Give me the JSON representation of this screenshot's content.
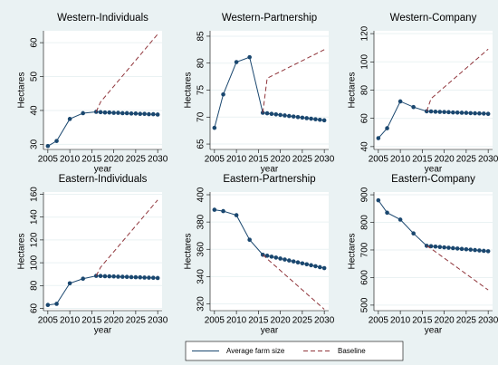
{
  "chart_data": [
    {
      "type": "line",
      "title": "Western-Individuals",
      "x_label": "year",
      "y_label": "Hectares",
      "xlim": [
        2004,
        2031
      ],
      "xticks": [
        2005,
        2010,
        2015,
        2020,
        2025,
        2030
      ],
      "ylim": [
        28.5,
        63.5
      ],
      "yticks": [
        30,
        40,
        50,
        60
      ],
      "grid": true,
      "series": [
        {
          "name": "Average farm size",
          "color": "#1a476f",
          "markers": true,
          "x": [
            2005,
            2007,
            2010,
            2013,
            2016,
            2017,
            2018,
            2019,
            2020,
            2021,
            2022,
            2023,
            2024,
            2025,
            2026,
            2027,
            2028,
            2029,
            2030
          ],
          "values": [
            29.5,
            31,
            37.5,
            39.2,
            39.6,
            39.5,
            39.4,
            39.4,
            39.3,
            39.3,
            39.2,
            39.2,
            39.1,
            39.1,
            39.0,
            39.0,
            38.9,
            38.9,
            38.8
          ]
        },
        {
          "name": "Baseline",
          "color": "#90353b",
          "dashed": true,
          "x": [
            2016,
            2017,
            2030
          ],
          "values": [
            39.6,
            42.5,
            62.5
          ]
        }
      ]
    },
    {
      "type": "line",
      "title": "Western-Partnership",
      "x_label": "year",
      "y_label": "Hectares",
      "xlim": [
        2004,
        2031
      ],
      "xticks": [
        2005,
        2010,
        2015,
        2020,
        2025,
        2030
      ],
      "ylim": [
        64,
        86
      ],
      "yticks": [
        65,
        70,
        75,
        80,
        85
      ],
      "grid": true,
      "series": [
        {
          "name": "Average farm size",
          "color": "#1a476f",
          "markers": true,
          "x": [
            2005,
            2007,
            2010,
            2013,
            2016,
            2017,
            2018,
            2019,
            2020,
            2021,
            2022,
            2023,
            2024,
            2025,
            2026,
            2027,
            2028,
            2029,
            2030
          ],
          "values": [
            68,
            74.2,
            80.2,
            81.1,
            70.8,
            70.7,
            70.6,
            70.5,
            70.4,
            70.3,
            70.2,
            70.1,
            70.0,
            69.9,
            69.8,
            69.7,
            69.6,
            69.5,
            69.4
          ]
        },
        {
          "name": "Baseline",
          "color": "#90353b",
          "dashed": true,
          "x": [
            2016,
            2017,
            2030
          ],
          "values": [
            70.8,
            77.2,
            82.5
          ]
        }
      ]
    },
    {
      "type": "line",
      "title": "Western-Company",
      "x_label": "year",
      "y_label": "Hectares",
      "xlim": [
        2004,
        2031
      ],
      "xticks": [
        2005,
        2010,
        2015,
        2020,
        2025,
        2030
      ],
      "ylim": [
        38,
        122
      ],
      "yticks": [
        40,
        60,
        80,
        100,
        120
      ],
      "grid": true,
      "series": [
        {
          "name": "Average farm size",
          "color": "#1a476f",
          "markers": true,
          "x": [
            2005,
            2007,
            2010,
            2013,
            2016,
            2017,
            2018,
            2019,
            2020,
            2021,
            2022,
            2023,
            2024,
            2025,
            2026,
            2027,
            2028,
            2029,
            2030
          ],
          "values": [
            46,
            53,
            72,
            68,
            65,
            64.9,
            64.7,
            64.6,
            64.5,
            64.4,
            64.2,
            64.1,
            64.0,
            63.9,
            63.7,
            63.6,
            63.5,
            63.4,
            63.2
          ]
        },
        {
          "name": "Baseline",
          "color": "#90353b",
          "dashed": true,
          "x": [
            2016,
            2017,
            2030
          ],
          "values": [
            65,
            74,
            109
          ]
        }
      ]
    },
    {
      "type": "line",
      "title": "Eastern-Individuals",
      "x_label": "year",
      "y_label": "Hectares",
      "xlim": [
        2004,
        2031
      ],
      "xticks": [
        2005,
        2010,
        2015,
        2020,
        2025,
        2030
      ],
      "ylim": [
        58,
        162
      ],
      "yticks": [
        60,
        80,
        100,
        120,
        140,
        160
      ],
      "grid": true,
      "series": [
        {
          "name": "Average farm size",
          "color": "#1a476f",
          "markers": true,
          "x": [
            2005,
            2007,
            2010,
            2013,
            2016,
            2017,
            2018,
            2019,
            2020,
            2021,
            2022,
            2023,
            2024,
            2025,
            2026,
            2027,
            2028,
            2029,
            2030
          ],
          "values": [
            63,
            64,
            82,
            86,
            88.5,
            88.4,
            88.2,
            88.1,
            88.0,
            87.8,
            87.7,
            87.6,
            87.4,
            87.3,
            87.2,
            87.0,
            86.9,
            86.8,
            86.6
          ]
        },
        {
          "name": "Baseline",
          "color": "#90353b",
          "dashed": true,
          "x": [
            2016,
            2017,
            2030
          ],
          "values": [
            88.5,
            96,
            155
          ]
        }
      ]
    },
    {
      "type": "line",
      "title": "Eastern-Partnership",
      "x_label": "year",
      "y_label": "Hectares",
      "xlim": [
        2004,
        2031
      ],
      "xticks": [
        2005,
        2010,
        2015,
        2020,
        2025,
        2030
      ],
      "ylim": [
        315,
        402
      ],
      "yticks": [
        320,
        340,
        360,
        380,
        400
      ],
      "grid": true,
      "series": [
        {
          "name": "Average farm size",
          "color": "#1a476f",
          "markers": true,
          "x": [
            2005,
            2007,
            2010,
            2013,
            2016,
            2017,
            2018,
            2019,
            2020,
            2021,
            2022,
            2023,
            2024,
            2025,
            2026,
            2027,
            2028,
            2029,
            2030
          ],
          "values": [
            389,
            388,
            385,
            367,
            356,
            355.3,
            354.6,
            353.9,
            353.2,
            352.5,
            351.8,
            351.1,
            350.4,
            349.7,
            349.0,
            348.3,
            347.6,
            346.9,
            346.2
          ]
        },
        {
          "name": "Baseline",
          "color": "#90353b",
          "dashed": true,
          "x": [
            2016,
            2017,
            2030
          ],
          "values": [
            356,
            353,
            316
          ]
        }
      ]
    },
    {
      "type": "line",
      "title": "Eastern-Company",
      "x_label": "year",
      "y_label": "Hectares",
      "xlim": [
        2004,
        2031
      ],
      "xticks": [
        2005,
        2010,
        2015,
        2020,
        2025,
        2030
      ],
      "ylim": [
        480,
        910
      ],
      "yticks": [
        500,
        600,
        700,
        800,
        900
      ],
      "grid": true,
      "series": [
        {
          "name": "Average farm size",
          "color": "#1a476f",
          "markers": true,
          "x": [
            2005,
            2007,
            2010,
            2013,
            2016,
            2017,
            2018,
            2019,
            2020,
            2021,
            2022,
            2023,
            2024,
            2025,
            2026,
            2027,
            2028,
            2029,
            2030
          ],
          "values": [
            880,
            835,
            810,
            760,
            715,
            713.6,
            712.2,
            710.8,
            709.4,
            708.0,
            706.6,
            705.2,
            703.8,
            702.4,
            701.0,
            699.6,
            698.2,
            696.8,
            695.4
          ]
        },
        {
          "name": "Baseline",
          "color": "#90353b",
          "dashed": true,
          "x": [
            2016,
            2017,
            2030
          ],
          "values": [
            715,
            705,
            555
          ]
        }
      ]
    }
  ]
}
